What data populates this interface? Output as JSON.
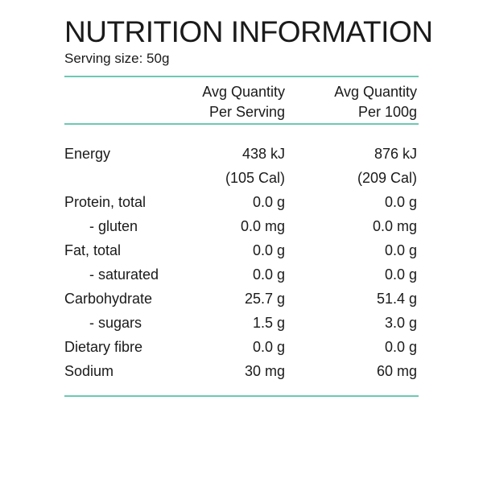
{
  "title": "NUTRITION INFORMATION",
  "serving_size": "Serving size: 50g",
  "accent_color": "#6cc9b4",
  "columns": {
    "per_serving": [
      "Avg Quantity",
      "Per Serving"
    ],
    "per_100g": [
      "Avg Quantity",
      "Per 100g"
    ]
  },
  "rows": [
    {
      "label": "Energy",
      "serving": "438 kJ",
      "per100": "876 kJ"
    },
    {
      "label": "",
      "serving": "(105 Cal)",
      "per100": "(209 Cal)"
    },
    {
      "label": "Protein, total",
      "serving": "0.0 g",
      "per100": "0.0 g"
    },
    {
      "label": "- gluten",
      "serving": "0.0 mg",
      "per100": "0.0 mg"
    },
    {
      "label": "Fat, total",
      "serving": "0.0 g",
      "per100": "0.0 g"
    },
    {
      "label": "- saturated",
      "serving": "0.0 g",
      "per100": "0.0 g"
    },
    {
      "label": "Carbohydrate",
      "serving": "25.7 g",
      "per100": "51.4 g"
    },
    {
      "label": "- sugars",
      "serving": "1.5 g",
      "per100": "3.0 g"
    },
    {
      "label": "Dietary fibre",
      "serving": "0.0 g",
      "per100": "0.0 g"
    },
    {
      "label": "Sodium",
      "serving": "30 mg",
      "per100": "60 mg"
    }
  ]
}
